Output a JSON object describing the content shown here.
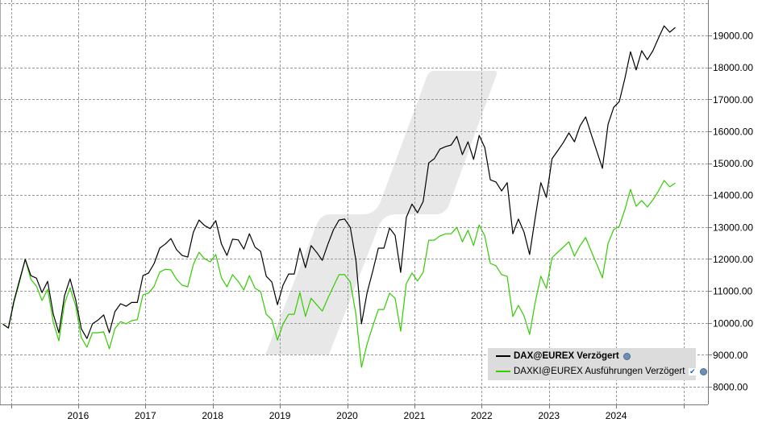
{
  "chart_data": {
    "type": "line",
    "title": "",
    "xlabel": "",
    "ylabel": "",
    "x_start": "2014-12",
    "x_frequency": "monthly",
    "x_tick_labels": [
      "2016",
      "2017",
      "2018",
      "2019",
      "2020",
      "2021",
      "2022",
      "2023",
      "2024"
    ],
    "y_tick_labels": [
      "8000.00",
      "9000.00",
      "10000.00",
      "11000.00",
      "12000.00",
      "13000.00",
      "14000.00",
      "15000.00",
      "16000.00",
      "17000.00",
      "18000.00",
      "19000.00"
    ],
    "y_ticks": [
      8000,
      9000,
      10000,
      11000,
      12000,
      13000,
      14000,
      15000,
      16000,
      17000,
      18000,
      19000
    ],
    "ylim": [
      7500,
      20000
    ],
    "y_axis_side": "right",
    "grid": true,
    "legend_position": "bottom-right",
    "series": [
      {
        "name": "DAX@EUREX Verzögert",
        "color": "#000000",
        "values": [
          9960,
          9840,
          10700,
          11350,
          11990,
          11480,
          11400,
          10950,
          11300,
          10270,
          9690,
          10850,
          11380,
          10720,
          9820,
          9510,
          9970,
          10090,
          10250,
          9690,
          10350,
          10600,
          10520,
          10640,
          10640,
          11480,
          11560,
          11860,
          12340,
          12470,
          12640,
          12290,
          12110,
          12060,
          12840,
          13220,
          13050,
          12950,
          13200,
          12470,
          12110,
          12620,
          12600,
          12310,
          12790,
          12370,
          12240,
          11460,
          11280,
          10570,
          11180,
          11530,
          11530,
          12340,
          11730,
          12420,
          12210,
          11960,
          12460,
          12920,
          13220,
          13250,
          12990,
          11960,
          9970,
          10950,
          11610,
          12340,
          12340,
          12970,
          12740,
          11580,
          13300,
          13720,
          13450,
          13800,
          15010,
          15140,
          15440,
          15520,
          15570,
          15840,
          15270,
          15670,
          15120,
          15870,
          15490,
          14480,
          14410,
          14130,
          14390,
          12790,
          13250,
          12840,
          12140,
          13300,
          14390,
          13930,
          15140,
          15390,
          15640,
          15950,
          15670,
          16170,
          16450,
          15900,
          15370,
          14840,
          16220,
          16750,
          16930,
          17660,
          18490,
          17920,
          18520,
          18240,
          18520,
          18920,
          19300,
          19100,
          19250
        ]
      },
      {
        "name": "DAXKI@EUREX Ausführungen Verzögert",
        "color": "#33cc00",
        "values": [
          9960,
          9840,
          10650,
          11300,
          11990,
          11360,
          11150,
          10700,
          11050,
          10020,
          9440,
          10600,
          11100,
          10520,
          9540,
          9240,
          9690,
          9690,
          9720,
          9190,
          9820,
          10040,
          9970,
          10070,
          10100,
          10880,
          10930,
          11150,
          11590,
          11680,
          11660,
          11360,
          11180,
          11130,
          11830,
          12210,
          12010,
          11910,
          12140,
          11410,
          11130,
          11510,
          11300,
          11030,
          11480,
          11080,
          10980,
          10270,
          10100,
          9460,
          9960,
          10270,
          10270,
          10950,
          10200,
          10770,
          10570,
          10370,
          10770,
          11150,
          11510,
          11510,
          11280,
          10270,
          8610,
          9340,
          9890,
          10420,
          10420,
          10930,
          10770,
          9740,
          11230,
          11560,
          11310,
          11580,
          12590,
          12590,
          12720,
          12790,
          12790,
          12990,
          12540,
          12900,
          12420,
          13070,
          12720,
          11860,
          11790,
          11510,
          11460,
          10200,
          10550,
          10220,
          9640,
          10650,
          11460,
          11080,
          12040,
          12210,
          12370,
          12540,
          12090,
          12420,
          12670,
          12240,
          11830,
          11410,
          12490,
          12920,
          13020,
          13550,
          14180,
          13650,
          13830,
          13630,
          13850,
          14130,
          14460,
          14260,
          14380
        ]
      }
    ]
  },
  "legend": {
    "item1": "DAX@EUREX Verzögert",
    "item2": "DAXKI@EUREX Ausführungen Verzögert"
  }
}
